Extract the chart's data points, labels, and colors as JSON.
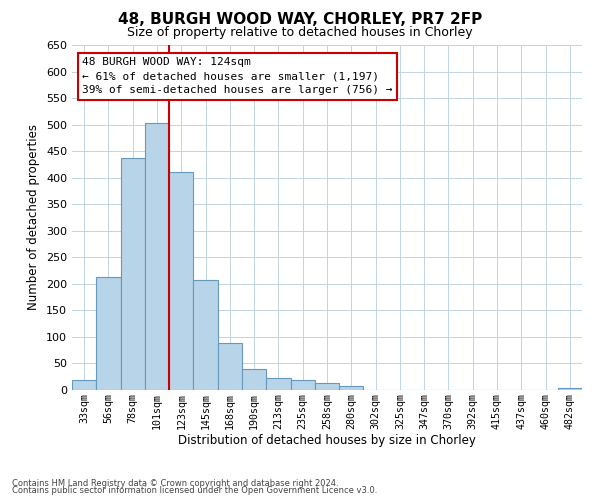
{
  "title": "48, BURGH WOOD WAY, CHORLEY, PR7 2FP",
  "subtitle": "Size of property relative to detached houses in Chorley",
  "xlabel": "Distribution of detached houses by size in Chorley",
  "ylabel": "Number of detached properties",
  "bar_labels": [
    "33sqm",
    "56sqm",
    "78sqm",
    "101sqm",
    "123sqm",
    "145sqm",
    "168sqm",
    "190sqm",
    "213sqm",
    "235sqm",
    "258sqm",
    "280sqm",
    "302sqm",
    "325sqm",
    "347sqm",
    "370sqm",
    "392sqm",
    "415sqm",
    "437sqm",
    "460sqm",
    "482sqm"
  ],
  "bar_values": [
    18,
    212,
    437,
    503,
    410,
    207,
    88,
    40,
    22,
    18,
    13,
    8,
    0,
    0,
    0,
    0,
    0,
    0,
    0,
    0,
    4
  ],
  "bar_color": "#b8d4e8",
  "bar_edge_color": "#6699bb",
  "vline_color": "#cc0000",
  "ylim": [
    0,
    650
  ],
  "yticks": [
    0,
    50,
    100,
    150,
    200,
    250,
    300,
    350,
    400,
    450,
    500,
    550,
    600,
    650
  ],
  "annotation_title": "48 BURGH WOOD WAY: 124sqm",
  "annotation_line1": "← 61% of detached houses are smaller (1,197)",
  "annotation_line2": "39% of semi-detached houses are larger (756) →",
  "annotation_box_color": "#ffffff",
  "annotation_box_edge": "#cc0000",
  "footnote1": "Contains HM Land Registry data © Crown copyright and database right 2024.",
  "footnote2": "Contains public sector information licensed under the Open Government Licence v3.0.",
  "background_color": "#ffffff",
  "grid_color": "#c0d4e4"
}
